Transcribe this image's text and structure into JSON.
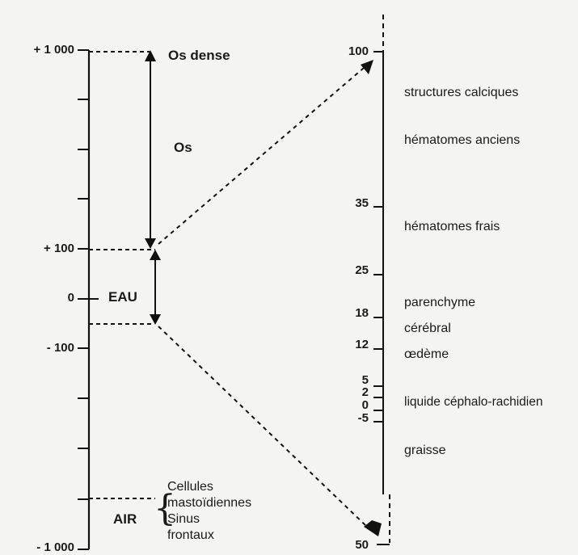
{
  "left_scale": {
    "ticks": [
      {
        "label": "+ 1 000"
      },
      {
        "label": "+ 100"
      },
      {
        "label": "0"
      },
      {
        "label": "- 100"
      },
      {
        "label": "- 1 000"
      }
    ]
  },
  "right_scale": {
    "ticks": [
      {
        "label": "100"
      },
      {
        "label": "35"
      },
      {
        "label": "25"
      },
      {
        "label": "18"
      },
      {
        "label": "12"
      },
      {
        "label": "5"
      },
      {
        "label": "2"
      },
      {
        "label": "0"
      },
      {
        "label": "-5"
      },
      {
        "label": "50"
      }
    ]
  },
  "regions": {
    "os_dense": "Os dense",
    "os": "Os",
    "eau": "EAU",
    "air": "AIR",
    "air_items": [
      "Cellules",
      "mastoïdiennes",
      "Sinus",
      "frontaux"
    ]
  },
  "tissues": [
    "structures calciques",
    "hématomes anciens",
    "hématomes frais",
    "parenchyme",
    "cérébral",
    "œdème",
    "liquide céphalo-rachidien",
    "graisse"
  ]
}
